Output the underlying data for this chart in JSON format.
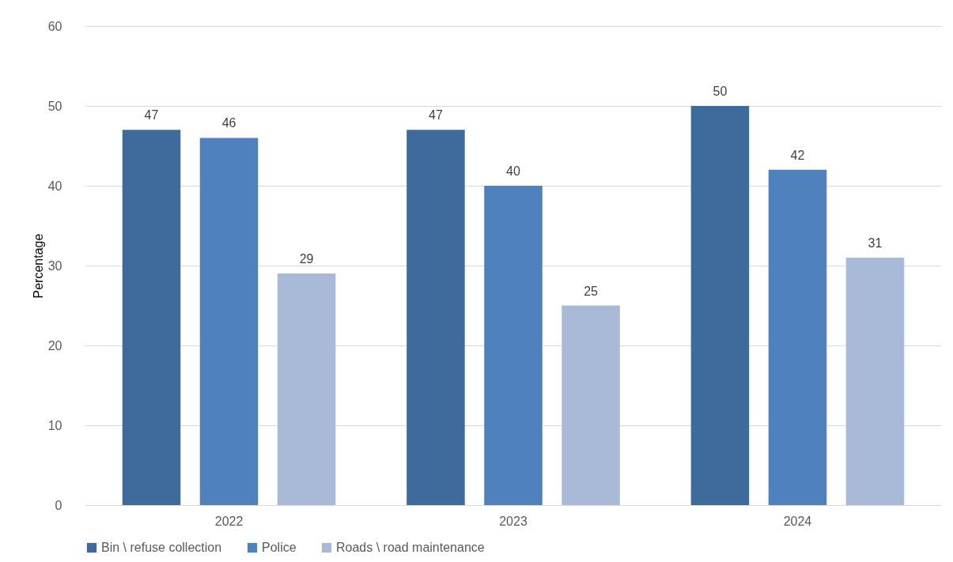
{
  "chart_data": {
    "type": "bar",
    "ylabel": "Percentage",
    "categories": [
      "2022",
      "2023",
      "2024"
    ],
    "series": [
      {
        "name": "Bin \\ refuse collection",
        "color": "#3f6a9c",
        "values": [
          47,
          47,
          50
        ]
      },
      {
        "name": "Police",
        "color": "#4f81bd",
        "values": [
          46,
          40,
          42
        ]
      },
      {
        "name": "Roads \\ road maintenance",
        "color": "#a9b9d8",
        "values": [
          29,
          25,
          31
        ]
      }
    ],
    "ylim": [
      0,
      60
    ],
    "yticks": [
      0,
      10,
      20,
      30,
      40,
      50,
      60
    ],
    "grid": "y",
    "legend": "bottom",
    "data_labels": true
  }
}
